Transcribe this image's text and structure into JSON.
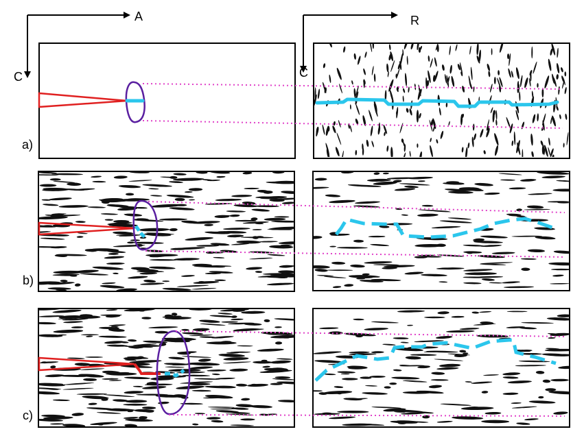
{
  "axes": {
    "left": {
      "horizontal_label": "A",
      "vertical_label": "C"
    },
    "right": {
      "horizontal_label": "R",
      "vertical_label": "C"
    }
  },
  "panels": [
    {
      "id": "a",
      "label": "a)",
      "texture": "none-left / vertical-flakes-right",
      "crack_style": "solid"
    },
    {
      "id": "b",
      "label": "b)",
      "texture": "horizontal-flakes",
      "crack_style": "dashed"
    },
    {
      "id": "c",
      "label": "c)",
      "texture": "horizontal-flakes",
      "crack_style": "dashed"
    }
  ],
  "colors": {
    "notch": "#e02020",
    "process_zone": "#5a1fa0",
    "crack": "#2bc6ec",
    "projection_lines": "#e040c8",
    "flakes": "#111111"
  }
}
